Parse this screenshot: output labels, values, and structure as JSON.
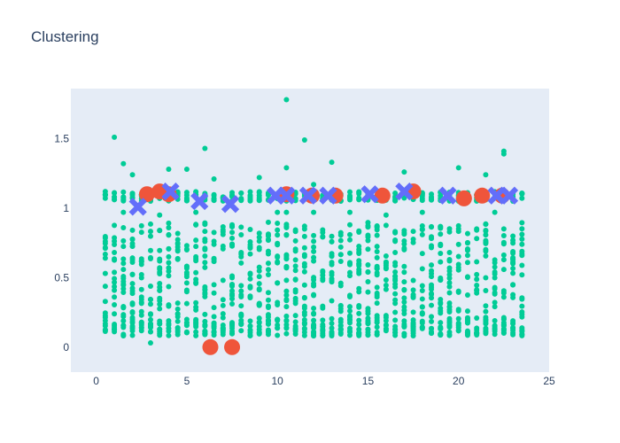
{
  "chart_data": {
    "type": "scatter",
    "title": "Clustering",
    "xlabel": "",
    "ylabel": "",
    "xlim": [
      -1.4,
      25
    ],
    "ylim": [
      -0.18,
      1.86
    ],
    "x_ticks": [
      0,
      5,
      10,
      15,
      20,
      25
    ],
    "y_ticks": [
      0,
      0.5,
      1,
      1.5
    ],
    "x_tick_labels": [
      "0",
      "5",
      "10",
      "15",
      "20",
      "25"
    ],
    "y_tick_labels": [
      "0",
      "0.5",
      "1",
      "1.5"
    ],
    "grid": false,
    "legend": "none",
    "colors": {
      "plot_bg": "#e5ecf6",
      "points": "#00cc96",
      "centroids_a": "#ef553b",
      "centroids_b": "#636efa",
      "text": "#2a3f5f"
    },
    "points_summary": {
      "x_range": [
        0.5,
        23.5
      ],
      "y_band_high": [
        1.05,
        1.12
      ],
      "y_band_low": [
        0.08,
        0.9
      ]
    },
    "series": [
      {
        "marker": "circle",
        "color": "#00cc96",
        "points": [
          [
            1,
            1.51
          ],
          [
            1.5,
            1.32
          ],
          [
            2,
            1.24
          ],
          [
            4,
            1.28
          ],
          [
            5,
            1.28
          ],
          [
            6,
            1.43
          ],
          [
            6.5,
            1.21
          ],
          [
            9,
            1.22
          ],
          [
            10.5,
            1.78
          ],
          [
            10.5,
            1.29
          ],
          [
            11.5,
            1.49
          ],
          [
            12,
            1.17
          ],
          [
            13,
            1.33
          ],
          [
            17,
            1.26
          ],
          [
            20,
            1.29
          ],
          [
            21.5,
            1.24
          ],
          [
            22.5,
            1.41
          ],
          [
            22.5,
            1.39
          ],
          [
            1.5,
            0.97
          ],
          [
            3.5,
            0.95
          ],
          [
            5.5,
            0.97
          ],
          [
            7.5,
            0.88
          ],
          [
            10,
            0.97
          ],
          [
            10.5,
            0.97
          ],
          [
            12,
            0.97
          ],
          [
            14,
            0.97
          ],
          [
            16,
            0.95
          ],
          [
            18,
            0.97
          ],
          [
            22,
            0.97
          ],
          [
            3,
            0.03
          ],
          [
            7.5,
            0.1
          ],
          [
            9,
            0.3
          ]
        ]
      },
      {
        "marker": "circle-large",
        "color": "#ef553b",
        "points": [
          [
            2.8,
            1.1
          ],
          [
            3.5,
            1.12
          ],
          [
            4,
            1.1
          ],
          [
            6.3,
            0
          ],
          [
            7.5,
            0
          ],
          [
            10.5,
            1.1
          ],
          [
            11.9,
            1.09
          ],
          [
            13.2,
            1.09
          ],
          [
            15.8,
            1.09
          ],
          [
            17.5,
            1.12
          ],
          [
            20.3,
            1.07
          ],
          [
            21.3,
            1.09
          ],
          [
            22.4,
            1.09
          ]
        ]
      },
      {
        "marker": "x",
        "color": "#636efa",
        "points": [
          [
            2.3,
            1.01
          ],
          [
            4.1,
            1.12
          ],
          [
            5.7,
            1.05
          ],
          [
            7.4,
            1.03
          ],
          [
            9.9,
            1.09
          ],
          [
            10.5,
            1.09
          ],
          [
            11.7,
            1.09
          ],
          [
            12.8,
            1.09
          ],
          [
            15.1,
            1.1
          ],
          [
            17,
            1.12
          ],
          [
            19.4,
            1.09
          ],
          [
            22.1,
            1.09
          ],
          [
            22.8,
            1.09
          ]
        ]
      }
    ]
  }
}
